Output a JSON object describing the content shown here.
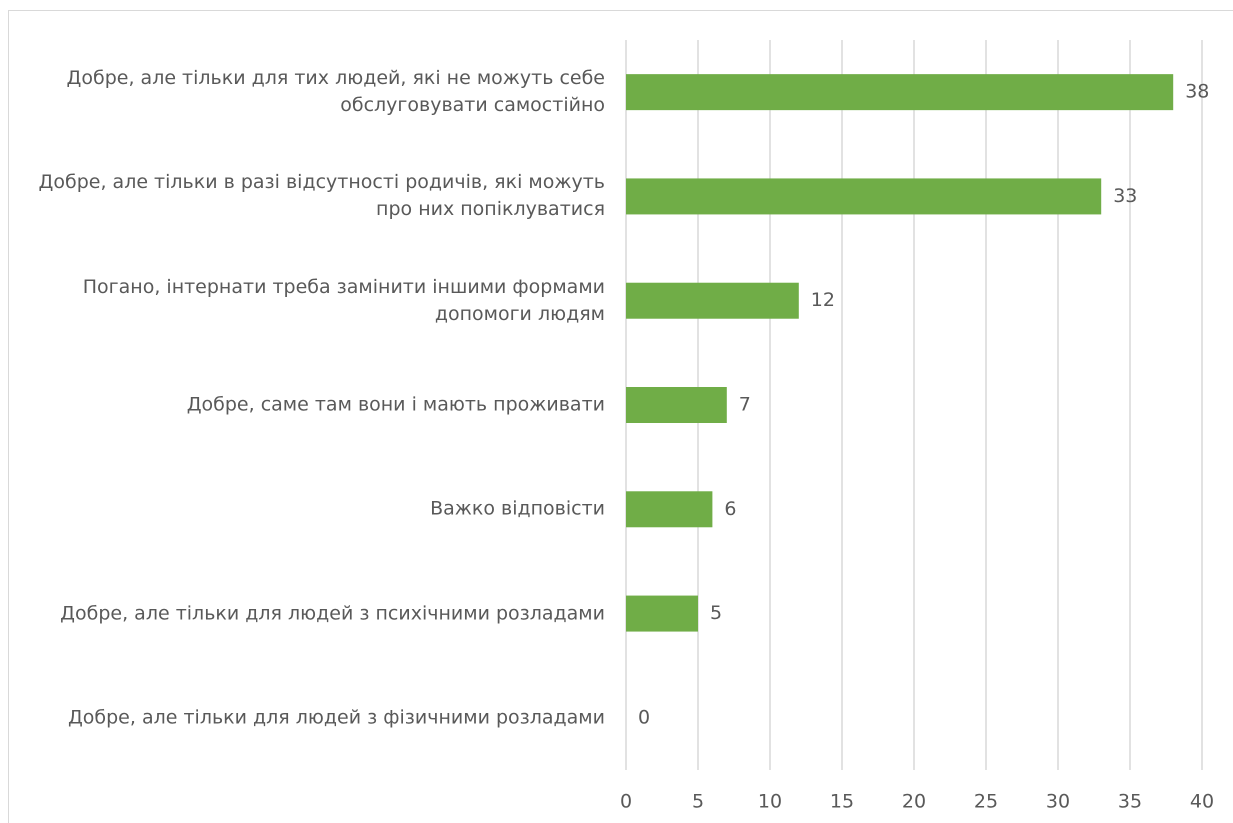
{
  "chart_data": {
    "type": "barh",
    "categories": [
      "Добре, але тільки для тих людей, які не можуть себе обслуговувати самостійно",
      "Добре, але тільки в разі відсутності родичів, які можуть про них попіклуватися",
      "Погано, інтернати треба замінити іншими формами допомоги людям",
      "Добре, саме там вони і мають проживати",
      "Важко відповісти",
      "Добре, але тільки для людей з психічними розладами",
      "Добре, але тільки для людей з фізичними розладами"
    ],
    "values": [
      38,
      33,
      12,
      7,
      6,
      5,
      0
    ],
    "color": "#70ad47",
    "xlim": [
      0,
      40
    ],
    "xticks": [
      0,
      5,
      10,
      15,
      20,
      25,
      30,
      35,
      40
    ],
    "grid": true
  }
}
